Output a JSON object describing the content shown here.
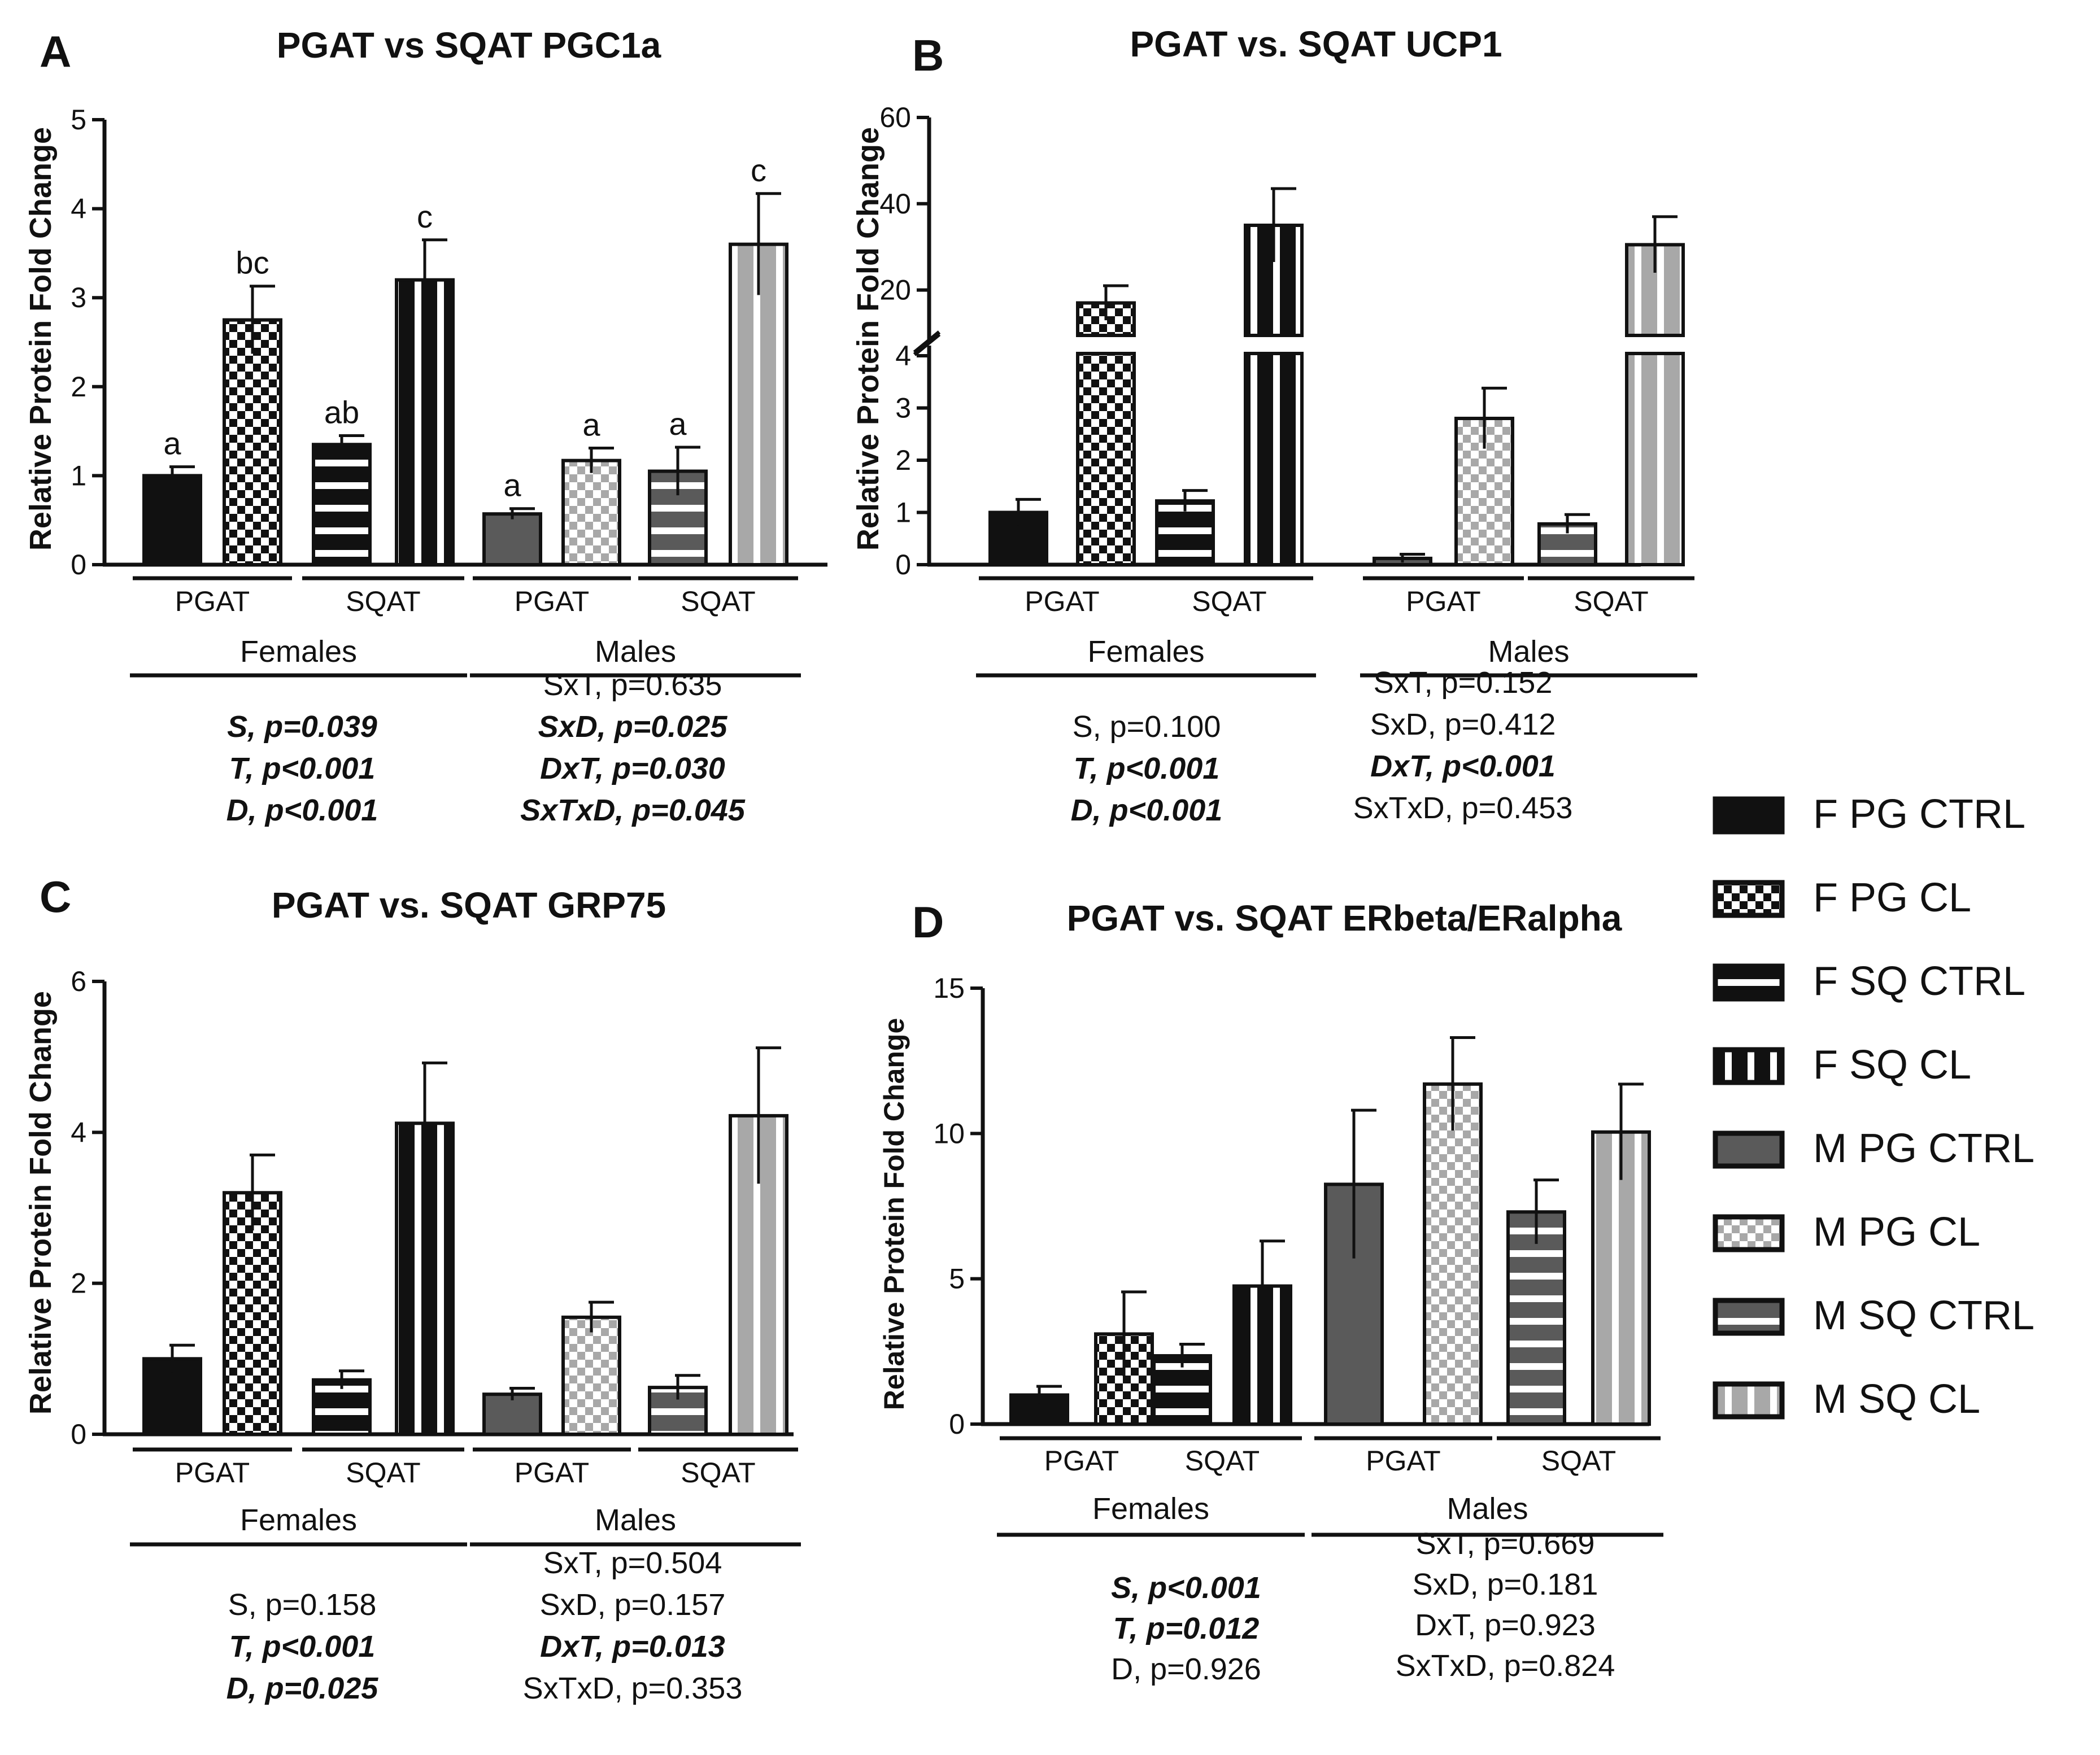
{
  "chart_data": [
    {
      "type": "bar",
      "panel_letter": "A",
      "title": "PGAT vs SQAT PGC1a",
      "ylabel": "Relative Protein Fold Change",
      "ylim": [
        0,
        5
      ],
      "yticks": [
        0,
        1,
        2,
        3,
        4,
        5
      ],
      "y_tick_labels": [
        "0",
        "1",
        "2",
        "3",
        "4",
        "5"
      ],
      "broken_axis": false,
      "groups": [
        "F PG CTRL",
        "F PG CL",
        "F SQ CTRL",
        "F SQ CL",
        "M PG CTRL",
        "M PG CL",
        "M SQ CTRL",
        "M SQ CL"
      ],
      "values": [
        1.0,
        2.75,
        1.35,
        3.2,
        0.57,
        1.17,
        1.05,
        3.6
      ],
      "errors": [
        0.1,
        0.38,
        0.1,
        0.45,
        0.06,
        0.14,
        0.27,
        0.57
      ],
      "letters": [
        "a",
        "bc",
        "ab",
        "c",
        "a",
        "a",
        "a",
        "c"
      ],
      "tissue_labels": [
        "PGAT",
        "SQAT",
        "PGAT",
        "SQAT"
      ],
      "sex_labels": [
        "Females",
        "Males"
      ],
      "stats_left": [
        {
          "text": "S, p=0.039",
          "bold": true
        },
        {
          "text": "T, p<0.001",
          "bold": true
        },
        {
          "text": "D, p<0.001",
          "bold": true
        }
      ],
      "stats_right": [
        {
          "text": "SxT, p=0.635",
          "bold": false
        },
        {
          "text": "SxD, p=0.025",
          "bold": true
        },
        {
          "text": "DxT, p=0.030",
          "bold": true
        },
        {
          "text": "SxTxD, p=0.045",
          "bold": true
        }
      ]
    },
    {
      "type": "bar",
      "panel_letter": "B",
      "title": "PGAT vs. SQAT UCP1",
      "ylabel": "Relative Protein Fold Change",
      "ylim": [
        0,
        60
      ],
      "broken_axis": true,
      "lower_range": [
        0,
        4
      ],
      "upper_range": [
        10,
        60
      ],
      "lower_ticks": [
        0,
        1,
        2,
        3,
        4
      ],
      "upper_ticks": [
        20,
        40,
        60
      ],
      "y_tick_labels": [
        "0",
        "1",
        "2",
        "3",
        "4",
        "20",
        "40",
        "60"
      ],
      "groups": [
        "F PG CTRL",
        "F PG CL",
        "F SQ CTRL",
        "F SQ CL",
        "M PG CTRL",
        "M PG CL",
        "M SQ CTRL",
        "M SQ CL"
      ],
      "values": [
        1.0,
        17.0,
        1.22,
        35.0,
        0.12,
        2.8,
        0.78,
        30.5
      ],
      "errors": [
        0.25,
        4.0,
        0.2,
        8.5,
        0.08,
        0.58,
        0.18,
        6.5
      ],
      "letters": [],
      "tissue_labels": [
        "PGAT",
        "SQAT",
        "PGAT",
        "SQAT"
      ],
      "sex_labels": [
        "Females",
        "Males"
      ],
      "stats_left": [
        {
          "text": "S, p=0.100",
          "bold": false
        },
        {
          "text": "T, p<0.001",
          "bold": true
        },
        {
          "text": "D, p<0.001",
          "bold": true
        }
      ],
      "stats_right": [
        {
          "text": "SxT, p=0.152",
          "bold": false
        },
        {
          "text": "SxD, p=0.412",
          "bold": false
        },
        {
          "text": "DxT, p<0.001",
          "bold": true
        },
        {
          "text": "SxTxD, p=0.453",
          "bold": false
        }
      ]
    },
    {
      "type": "bar",
      "panel_letter": "C",
      "title": "PGAT vs. SQAT GRP75",
      "ylabel": "Relative Protein Fold Change",
      "ylim": [
        0,
        6
      ],
      "yticks": [
        0,
        2,
        4,
        6
      ],
      "y_tick_labels": [
        "0",
        "2",
        "4",
        "6"
      ],
      "broken_axis": false,
      "groups": [
        "F PG CTRL",
        "F PG CL",
        "F SQ CTRL",
        "F SQ CL",
        "M PG CTRL",
        "M PG CL",
        "M SQ CTRL",
        "M SQ CL"
      ],
      "values": [
        1.0,
        3.2,
        0.72,
        4.12,
        0.53,
        1.55,
        0.62,
        4.22
      ],
      "errors": [
        0.18,
        0.5,
        0.12,
        0.8,
        0.08,
        0.2,
        0.16,
        0.9
      ],
      "letters": [],
      "tissue_labels": [
        "PGAT",
        "SQAT",
        "PGAT",
        "SQAT"
      ],
      "sex_labels": [
        "Females",
        "Males"
      ],
      "stats_left": [
        {
          "text": "S, p=0.158",
          "bold": false
        },
        {
          "text": "T, p<0.001",
          "bold": true
        },
        {
          "text": "D, p=0.025",
          "bold": true
        }
      ],
      "stats_right": [
        {
          "text": "SxT, p=0.504",
          "bold": false
        },
        {
          "text": "SxD, p=0.157",
          "bold": false
        },
        {
          "text": "DxT, p=0.013",
          "bold": true
        },
        {
          "text": "SxTxD, p=0.353",
          "bold": false
        }
      ]
    },
    {
      "type": "bar",
      "panel_letter": "D",
      "title": "PGAT vs. SQAT ERbeta/ERalpha",
      "ylabel": "Relative Protein Fold Change",
      "ylim": [
        0,
        15
      ],
      "yticks": [
        0,
        5,
        10,
        15
      ],
      "y_tick_labels": [
        "0",
        "5",
        "10",
        "15"
      ],
      "broken_axis": false,
      "groups": [
        "F PG CTRL",
        "F PG CL",
        "F SQ CTRL",
        "F SQ CL",
        "M PG CTRL",
        "M PG CL",
        "M SQ CTRL",
        "M SQ CL"
      ],
      "values": [
        1.0,
        3.1,
        2.35,
        4.75,
        8.25,
        11.7,
        7.3,
        10.05
      ],
      "errors": [
        0.3,
        1.45,
        0.4,
        1.55,
        2.55,
        1.6,
        1.1,
        1.65
      ],
      "letters": [],
      "tissue_labels": [
        "PGAT",
        "SQAT",
        "PGAT",
        "SQAT"
      ],
      "sex_labels": [
        "Females",
        "Males"
      ],
      "stats_left": [
        {
          "text": "S, p<0.001",
          "bold": true
        },
        {
          "text": "T, p=0.012",
          "bold": true
        },
        {
          "text": "D, p=0.926",
          "bold": false
        }
      ],
      "stats_right": [
        {
          "text": "SxT, p=0.669",
          "bold": false
        },
        {
          "text": "SxD, p=0.181",
          "bold": false
        },
        {
          "text": "DxT, p=0.923",
          "bold": false
        },
        {
          "text": "SxTxD, p=0.824",
          "bold": false
        }
      ]
    }
  ],
  "legend": [
    {
      "label": "F PG CTRL",
      "pattern": "solid-black"
    },
    {
      "label": "F PG CL",
      "pattern": "checker-black"
    },
    {
      "label": "F SQ CTRL",
      "pattern": "hstripe-black"
    },
    {
      "label": "F SQ CL",
      "pattern": "vstripe-black"
    },
    {
      "label": "M PG CTRL",
      "pattern": "solid-gray"
    },
    {
      "label": "M PG CL",
      "pattern": "checker-gray"
    },
    {
      "label": "M SQ CTRL",
      "pattern": "hstripe-gray"
    },
    {
      "label": "M SQ CL",
      "pattern": "vstripe-gray"
    }
  ],
  "colors": {
    "black": "#111111",
    "dark_gray": "#5a5a5a",
    "light_gray": "#a8a8a8",
    "white": "#ffffff"
  }
}
